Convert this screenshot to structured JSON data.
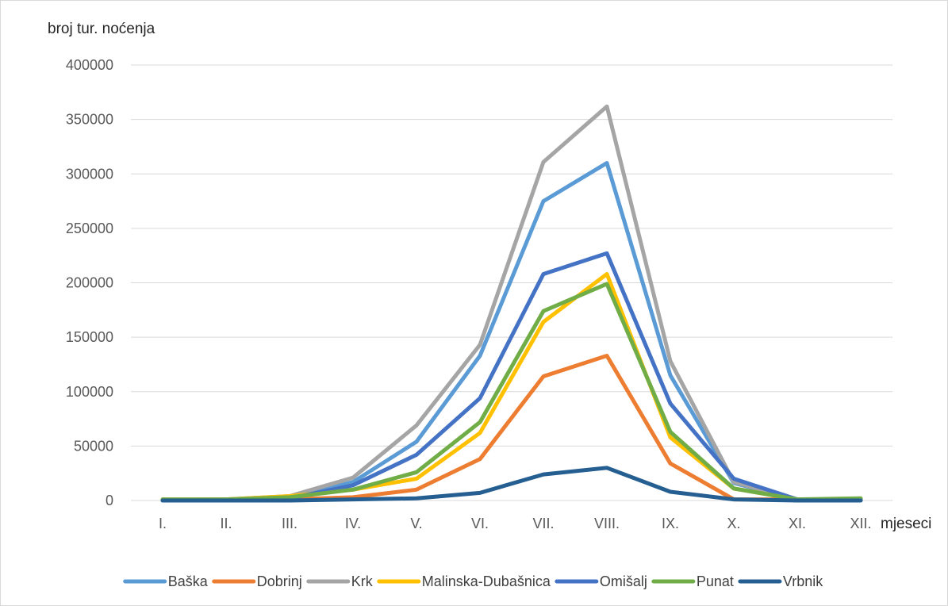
{
  "chart_data": {
    "type": "line",
    "title": "",
    "ylabel": "broj tur. noćenja",
    "xlabel": "mjeseci",
    "categories": [
      "I.",
      "II.",
      "III.",
      "IV.",
      "V.",
      "VI.",
      "VII.",
      "VIII.",
      "IX.",
      "X.",
      "XI.",
      "XII."
    ],
    "ylim": [
      0,
      400000
    ],
    "y_ticks": [
      0,
      50000,
      100000,
      150000,
      200000,
      250000,
      300000,
      350000,
      400000
    ],
    "y_tick_labels": [
      "0",
      "50000",
      "100000",
      "150000",
      "200000",
      "250000",
      "300000",
      "350000",
      "400000"
    ],
    "grid": "horizontal",
    "legend_position": "bottom",
    "series": [
      {
        "name": "Baška",
        "color": "#5B9BD5",
        "values": [
          0,
          0,
          2000,
          17000,
          54000,
          133000,
          275000,
          310000,
          115000,
          16000,
          1000,
          1000
        ]
      },
      {
        "name": "Dobrinj",
        "color": "#ED7D31",
        "values": [
          500,
          500,
          1000,
          3000,
          10000,
          38000,
          114000,
          133000,
          34000,
          1000,
          1000,
          1000
        ]
      },
      {
        "name": "Krk",
        "color": "#A5A5A5",
        "values": [
          500,
          1000,
          4000,
          21000,
          69000,
          143000,
          311000,
          362000,
          128000,
          17000,
          1000,
          1000
        ]
      },
      {
        "name": "Malinska-Dubašnica",
        "color": "#FFC000",
        "values": [
          1000,
          1000,
          4000,
          10000,
          20000,
          62000,
          164000,
          208000,
          58000,
          11000,
          1000,
          1000
        ]
      },
      {
        "name": "Omišalj",
        "color": "#4472C4",
        "values": [
          0,
          0,
          2000,
          14000,
          42000,
          94000,
          208000,
          227000,
          89000,
          20000,
          1000,
          1000
        ]
      },
      {
        "name": "Punat",
        "color": "#70AD47",
        "values": [
          1000,
          1000,
          3000,
          10000,
          26000,
          72000,
          174000,
          199000,
          63000,
          11000,
          1000,
          2000
        ]
      },
      {
        "name": "Vrbnik",
        "color": "#255E91",
        "values": [
          0,
          0,
          0,
          1000,
          2000,
          7000,
          24000,
          30000,
          8000,
          1000,
          0,
          0
        ]
      }
    ]
  }
}
